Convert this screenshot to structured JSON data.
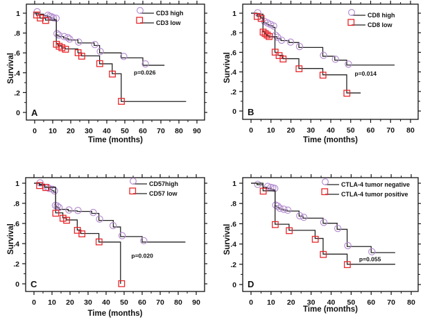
{
  "chart_data": [
    {
      "type": "line",
      "subtype": "kaplan-meier",
      "panel_label": "A",
      "xlabel": "Time (months)",
      "ylabel": "Survival",
      "xlim": [
        0,
        90
      ],
      "ylim": [
        0,
        1
      ],
      "xticks": [
        0,
        10,
        20,
        30,
        40,
        50,
        60,
        70,
        80,
        90
      ],
      "yticks": [
        {
          "v": 0,
          "label": "0"
        },
        {
          "v": 0.2,
          "label": ".2"
        },
        {
          "v": 0.4,
          "label": ".4"
        },
        {
          "v": 0.6,
          "label": ".6"
        },
        {
          "v": 0.8,
          "label": ".8"
        },
        {
          "v": 1,
          "label": "1"
        }
      ],
      "legend_placement": "top-right",
      "annotation": "p=0.026",
      "annotation_at": [
        55,
        0.38
      ],
      "series": [
        {
          "name": "CD3 high",
          "marker": "circle",
          "color": "#b68fd0",
          "steps": [
            [
              0,
              1
            ],
            [
              2,
              0.99
            ],
            [
              5,
              0.975
            ],
            [
              7,
              0.965
            ],
            [
              9,
              0.95
            ],
            [
              11,
              0.935
            ],
            [
              12,
              0.78
            ],
            [
              13,
              0.765
            ],
            [
              16,
              0.75
            ],
            [
              18,
              0.74
            ],
            [
              19,
              0.73
            ],
            [
              24,
              0.7
            ],
            [
              33,
              0.675
            ],
            [
              36,
              0.6
            ],
            [
              48,
              0.55
            ],
            [
              60,
              0.475
            ]
          ],
          "end": 72,
          "censored": [
            [
              1,
              1
            ],
            [
              7,
              0.965
            ],
            [
              8,
              0.955
            ],
            [
              9,
              0.95
            ],
            [
              10,
              0.94
            ],
            [
              11.5,
              0.935
            ],
            [
              12,
              0.78
            ],
            [
              13,
              0.765
            ],
            [
              16,
              0.75
            ],
            [
              18,
              0.74
            ],
            [
              19,
              0.725
            ],
            [
              24,
              0.695
            ],
            [
              33,
              0.67
            ],
            [
              36,
              0.6
            ],
            [
              49,
              0.55
            ],
            [
              61,
              0.475
            ]
          ]
        },
        {
          "name": "CD3 low",
          "marker": "square",
          "color": "#e8262b",
          "steps": [
            [
              0,
              1
            ],
            [
              1,
              0.98
            ],
            [
              3,
              0.95
            ],
            [
              6,
              0.93
            ],
            [
              12,
              0.69
            ],
            [
              13,
              0.67
            ],
            [
              15,
              0.65
            ],
            [
              17,
              0.64
            ],
            [
              24,
              0.6
            ],
            [
              26,
              0.57
            ],
            [
              36,
              0.49
            ],
            [
              43,
              0.39
            ],
            [
              48,
              0.11
            ]
          ],
          "end": 84,
          "censored": [
            [
              1,
              0.98
            ],
            [
              3,
              0.95
            ],
            [
              6,
              0.925
            ],
            [
              12,
              0.685
            ],
            [
              13.5,
              0.665
            ],
            [
              15,
              0.65
            ],
            [
              17,
              0.635
            ],
            [
              24,
              0.6
            ],
            [
              26,
              0.565
            ],
            [
              36,
              0.49
            ],
            [
              43,
              0.385
            ],
            [
              48,
              0.11
            ]
          ]
        }
      ]
    },
    {
      "type": "line",
      "subtype": "kaplan-meier",
      "panel_label": "B",
      "xlabel": "Time (months)",
      "ylabel": "Survival",
      "xlim": [
        0,
        80
      ],
      "ylim": [
        0,
        1
      ],
      "xticks": [
        0,
        10,
        20,
        30,
        40,
        50,
        60,
        70,
        80
      ],
      "yticks": [
        {
          "v": 0,
          "label": "0"
        },
        {
          "v": 0.2,
          "label": ".2"
        },
        {
          "v": 0.4,
          "label": ".4"
        },
        {
          "v": 0.6,
          "label": ".6"
        },
        {
          "v": 0.8,
          "label": ".8"
        },
        {
          "v": 1,
          "label": "1"
        }
      ],
      "legend_placement": "top-right",
      "annotation": "p=0.014",
      "annotation_at": [
        52,
        0.36
      ],
      "series": [
        {
          "name": "CD8 high",
          "marker": "circle",
          "color": "#b68fd0",
          "steps": [
            [
              0,
              1
            ],
            [
              3,
              0.99
            ],
            [
              6,
              0.95
            ],
            [
              6.5,
              0.9
            ],
            [
              8,
              0.885
            ],
            [
              9,
              0.87
            ],
            [
              11,
              0.855
            ],
            [
              12,
              0.76
            ],
            [
              13,
              0.74
            ],
            [
              15,
              0.72
            ],
            [
              19,
              0.7
            ],
            [
              24,
              0.65
            ],
            [
              36,
              0.56
            ],
            [
              42,
              0.52
            ],
            [
              48,
              0.47
            ]
          ],
          "end": 72,
          "censored": [
            [
              3,
              0.99
            ],
            [
              6.5,
              0.9
            ],
            [
              8,
              0.885
            ],
            [
              9.5,
              0.87
            ],
            [
              11,
              0.855
            ],
            [
              12,
              0.76
            ],
            [
              13,
              0.74
            ],
            [
              15,
              0.71
            ],
            [
              19.5,
              0.69
            ],
            [
              24,
              0.645
            ],
            [
              36,
              0.555
            ],
            [
              42,
              0.515
            ],
            [
              48.5,
              0.465
            ]
          ]
        },
        {
          "name": "CD8 low",
          "marker": "square",
          "color": "#e8262b",
          "steps": [
            [
              0,
              1
            ],
            [
              3,
              0.97
            ],
            [
              5,
              0.95
            ],
            [
              6,
              0.81
            ],
            [
              7,
              0.79
            ],
            [
              8,
              0.77
            ],
            [
              9,
              0.76
            ],
            [
              12,
              0.6
            ],
            [
              13.5,
              0.57
            ],
            [
              16,
              0.535
            ],
            [
              24,
              0.435
            ],
            [
              36,
              0.37
            ],
            [
              48,
              0.185
            ]
          ],
          "end": 55,
          "censored": [
            [
              3,
              0.965
            ],
            [
              5,
              0.945
            ],
            [
              6,
              0.805
            ],
            [
              7,
              0.79
            ],
            [
              8,
              0.775
            ],
            [
              9,
              0.76
            ],
            [
              12,
              0.6
            ],
            [
              14,
              0.565
            ],
            [
              16,
              0.53
            ],
            [
              24,
              0.43
            ],
            [
              36,
              0.365
            ],
            [
              48,
              0.18
            ]
          ]
        }
      ]
    },
    {
      "type": "line",
      "subtype": "kaplan-meier",
      "panel_label": "C",
      "xlabel": "Time (months)",
      "ylabel": "Survival",
      "xlim": [
        0,
        90
      ],
      "ylim": [
        0,
        1
      ],
      "xticks": [
        0,
        10,
        20,
        30,
        40,
        50,
        60,
        70,
        80,
        90
      ],
      "yticks": [
        {
          "v": 0,
          "label": "0"
        },
        {
          "v": 0.2,
          "label": ".2"
        },
        {
          "v": 0.4,
          "label": ".4"
        },
        {
          "v": 0.6,
          "label": ".6"
        },
        {
          "v": 0.8,
          "label": ".8"
        },
        {
          "v": 1,
          "label": "1"
        }
      ],
      "legend_placement": "top-right",
      "annotation": "p=0.020",
      "annotation_at": [
        54,
        0.26
      ],
      "series": [
        {
          "name": "CD57high",
          "marker": "circle",
          "color": "#b68fd0",
          "steps": [
            [
              0,
              1
            ],
            [
              3,
              0.99
            ],
            [
              6,
              0.96
            ],
            [
              8,
              0.94
            ],
            [
              10,
              0.925
            ],
            [
              11,
              0.91
            ],
            [
              12,
              0.765
            ],
            [
              13,
              0.755
            ],
            [
              14,
              0.74
            ],
            [
              19,
              0.725
            ],
            [
              24,
              0.72
            ],
            [
              32,
              0.7
            ],
            [
              36,
              0.63
            ],
            [
              44,
              0.565
            ],
            [
              48,
              0.47
            ],
            [
              60,
              0.415
            ]
          ],
          "end": 84,
          "censored": [
            [
              3,
              0.99
            ],
            [
              7,
              0.945
            ],
            [
              8,
              0.935
            ],
            [
              10,
              0.925
            ],
            [
              11,
              0.91
            ],
            [
              11.5,
              0.765
            ],
            [
              12.5,
              0.76
            ],
            [
              13.5,
              0.745
            ],
            [
              19,
              0.72
            ],
            [
              24,
              0.715
            ],
            [
              32.5,
              0.695
            ],
            [
              36,
              0.63
            ],
            [
              43.5,
              0.565
            ],
            [
              48.5,
              0.465
            ],
            [
              60.5,
              0.415
            ]
          ]
        },
        {
          "name": "CD57 low",
          "marker": "square",
          "color": "#e8262b",
          "steps": [
            [
              0,
              1
            ],
            [
              3,
              0.98
            ],
            [
              6,
              0.96
            ],
            [
              12,
              0.705
            ],
            [
              16,
              0.655
            ],
            [
              18,
              0.635
            ],
            [
              24,
              0.535
            ],
            [
              26,
              0.5
            ],
            [
              36,
              0.415
            ],
            [
              48,
              0.0
            ]
          ],
          "end": 48,
          "censored": [
            [
              3,
              0.975
            ],
            [
              6.5,
              0.955
            ],
            [
              12,
              0.7
            ],
            [
              16,
              0.65
            ],
            [
              18,
              0.63
            ],
            [
              24,
              0.53
            ],
            [
              26.5,
              0.495
            ],
            [
              36,
              0.415
            ],
            [
              48.5,
              0.0
            ]
          ]
        }
      ]
    },
    {
      "type": "line",
      "subtype": "kaplan-meier",
      "panel_label": "D",
      "xlabel": "Time (months)",
      "ylabel": "Survival",
      "xlim": [
        0,
        80
      ],
      "ylim": [
        0,
        1
      ],
      "xticks": [
        0,
        10,
        20,
        30,
        40,
        50,
        60,
        70,
        80
      ],
      "yticks": [
        {
          "v": 0,
          "label": "0"
        },
        {
          "v": 0.2,
          "label": ".2"
        },
        {
          "v": 0.4,
          "label": ".4"
        },
        {
          "v": 0.6,
          "label": ".6"
        },
        {
          "v": 0.8,
          "label": ".8"
        },
        {
          "v": 1,
          "label": "1"
        }
      ],
      "legend_placement": "top-right",
      "annotation": "p=0.055",
      "annotation_at": [
        54,
        0.23
      ],
      "series": [
        {
          "name": "CTLA-4 tumor negative",
          "marker": "circle",
          "color": "#b68fd0",
          "steps": [
            [
              0,
              1
            ],
            [
              3,
              0.985
            ],
            [
              6,
              0.96
            ],
            [
              8,
              0.95
            ],
            [
              10,
              0.94
            ],
            [
              11,
              0.935
            ],
            [
              12,
              0.775
            ],
            [
              13,
              0.76
            ],
            [
              14,
              0.745
            ],
            [
              16,
              0.735
            ],
            [
              18,
              0.725
            ],
            [
              24,
              0.675
            ],
            [
              26,
              0.655
            ],
            [
              36,
              0.605
            ],
            [
              43,
              0.545
            ],
            [
              48,
              0.375
            ],
            [
              60,
              0.315
            ]
          ],
          "end": 72,
          "censored": [
            [
              3,
              0.975
            ],
            [
              8,
              0.955
            ],
            [
              9.5,
              0.945
            ],
            [
              10.5,
              0.94
            ],
            [
              11.5,
              0.935
            ],
            [
              12,
              0.77
            ],
            [
              13,
              0.76
            ],
            [
              14,
              0.74
            ],
            [
              16,
              0.73
            ],
            [
              18,
              0.72
            ],
            [
              24,
              0.665
            ],
            [
              26,
              0.65
            ],
            [
              36,
              0.6
            ],
            [
              43,
              0.54
            ],
            [
              48,
              0.37
            ],
            [
              60,
              0.31
            ]
          ]
        },
        {
          "name": "CTLA-4 tumor positive",
          "marker": "square",
          "color": "#e8262b",
          "steps": [
            [
              0,
              1
            ],
            [
              6,
              0.925
            ],
            [
              12,
              0.595
            ],
            [
              19,
              0.535
            ],
            [
              32,
              0.455
            ],
            [
              36,
              0.3
            ],
            [
              48,
              0.2
            ]
          ],
          "end": 72,
          "censored": [
            [
              6,
              0.92
            ],
            [
              12,
              0.59
            ],
            [
              19,
              0.53
            ],
            [
              32,
              0.445
            ],
            [
              36,
              0.295
            ],
            [
              48,
              0.195
            ]
          ]
        }
      ]
    }
  ]
}
